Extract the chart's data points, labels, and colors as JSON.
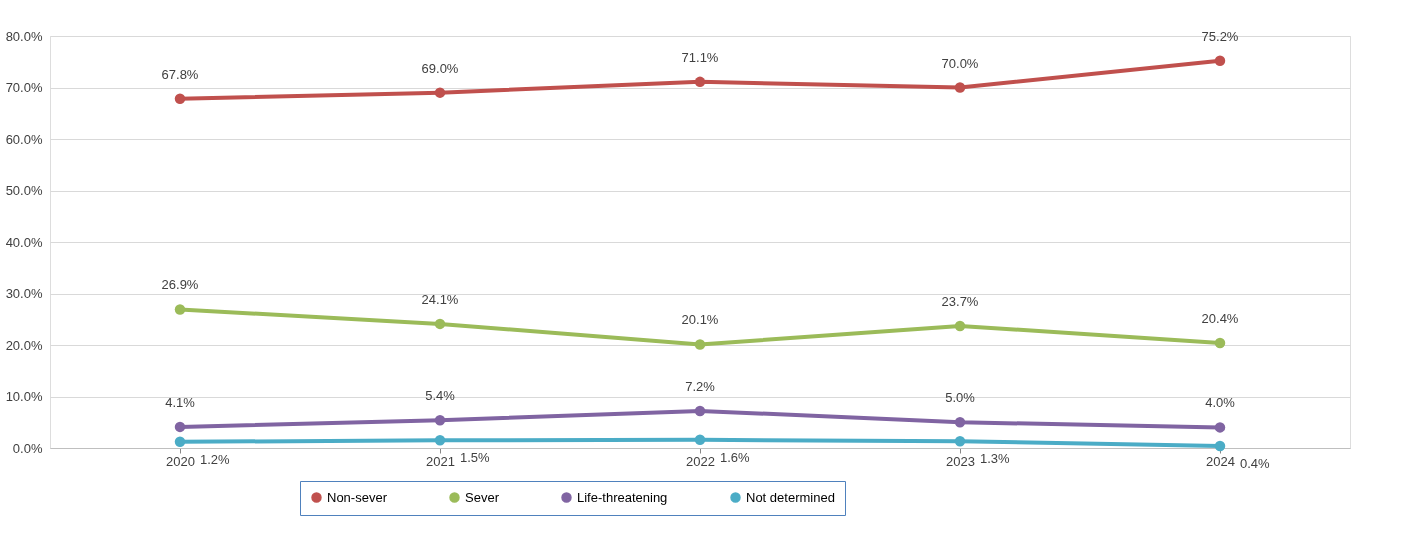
{
  "chart_data": {
    "type": "line",
    "categories": [
      "2020",
      "2021",
      "2022",
      "2023",
      "2024"
    ],
    "series": [
      {
        "name": "Non-sever",
        "color": "#c0504d",
        "values": [
          67.8,
          69.0,
          71.1,
          70.0,
          75.2
        ],
        "value_labels": [
          "67.8%",
          "69.0%",
          "71.1%",
          "70.0%",
          "75.2%"
        ]
      },
      {
        "name": "Sever",
        "color": "#9bbb59",
        "values": [
          26.9,
          24.1,
          20.1,
          23.7,
          20.4
        ],
        "value_labels": [
          "26.9%",
          "24.1%",
          "20.1%",
          "23.7%",
          "20.4%"
        ]
      },
      {
        "name": "Life-threatening",
        "color": "#8064a2",
        "values": [
          4.1,
          5.4,
          7.2,
          5.0,
          4.0
        ],
        "value_labels": [
          "4.1%",
          "5.4%",
          "7.2%",
          "5.0%",
          "4.0%"
        ]
      },
      {
        "name": "Not determined",
        "color": "#4bacc6",
        "values": [
          1.2,
          1.5,
          1.6,
          1.3,
          0.4
        ],
        "value_labels": [
          "1.2%",
          "1.5%",
          "1.6%",
          "1.3%",
          "0.4%"
        ]
      }
    ],
    "ylim": [
      0,
      80
    ],
    "yticks": [
      {
        "value": 0,
        "label": "0.0%"
      },
      {
        "value": 10,
        "label": "10.0%"
      },
      {
        "value": 20,
        "label": "20.0%"
      },
      {
        "value": 30,
        "label": "30.0%"
      },
      {
        "value": 40,
        "label": "40.0%"
      },
      {
        "value": 50,
        "label": "50.0%"
      },
      {
        "value": 60,
        "label": "60.0%"
      },
      {
        "value": 70,
        "label": "70.0%"
      },
      {
        "value": 80,
        "label": "80.0%"
      }
    ],
    "grid": "y",
    "legend": "bottom",
    "marker": "circle",
    "line_style": "solid"
  }
}
